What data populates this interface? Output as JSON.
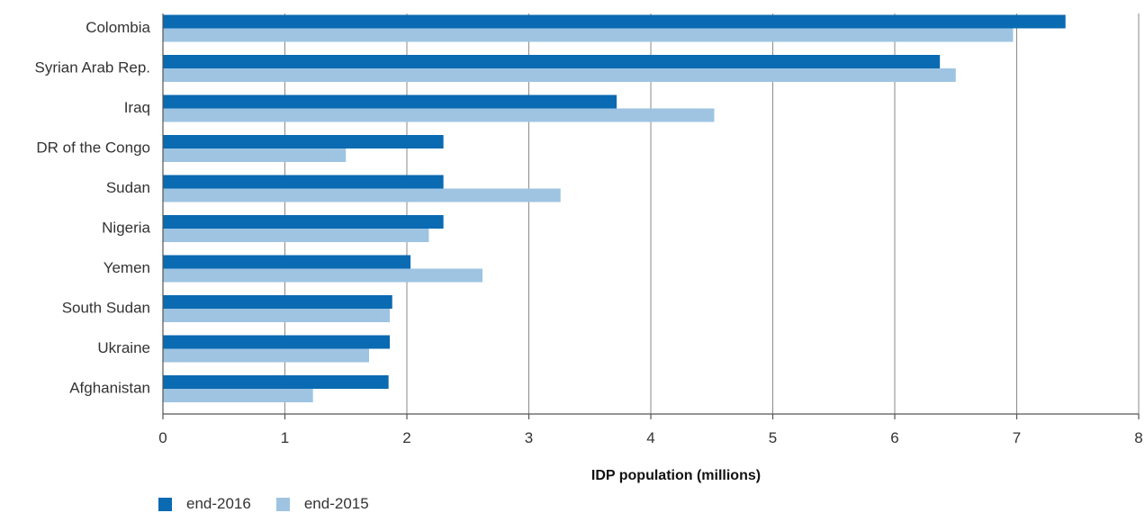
{
  "chart_data": {
    "type": "bar",
    "orientation": "horizontal",
    "categories": [
      "Colombia",
      "Syrian Arab Rep.",
      "Iraq",
      "DR of the Congo",
      "Sudan",
      "Nigeria",
      "Yemen",
      "South Sudan",
      "Ukraine",
      "Afghanistan"
    ],
    "series": [
      {
        "name": "end-2016",
        "color": "#0a6ab2",
        "values": [
          7.4,
          6.37,
          3.72,
          2.3,
          2.3,
          2.3,
          2.03,
          1.88,
          1.86,
          1.85
        ]
      },
      {
        "name": "end-2015",
        "color": "#9ec4e2",
        "values": [
          6.97,
          6.5,
          4.52,
          1.5,
          3.26,
          2.18,
          2.62,
          1.86,
          1.69,
          1.23
        ]
      }
    ],
    "xlabel": "IDP population (millions)",
    "xlim": [
      0,
      8
    ],
    "xticks": [
      "0",
      "1",
      "2",
      "3",
      "4",
      "5",
      "6",
      "7",
      "8"
    ],
    "grid": true,
    "legend_position": "bottom-left"
  }
}
